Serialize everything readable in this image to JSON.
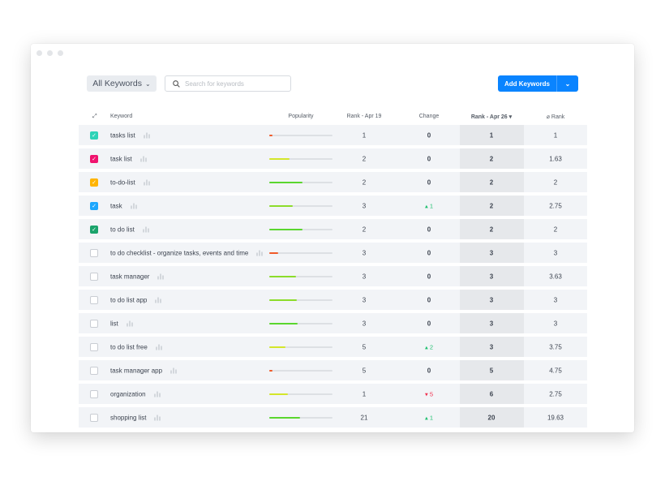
{
  "toolbar": {
    "filter_label": "All Keywords",
    "search_placeholder": "Search for keywords",
    "add_label": "Add Keywords"
  },
  "columns": {
    "keyword": "Keyword",
    "popularity": "Popularity",
    "rank_prev": "Rank - Apr 19",
    "change": "Change",
    "rank_curr": "Rank - Apr 26",
    "avg_rank": "⌀ Rank"
  },
  "rows": [
    {
      "keyword": "tasks list",
      "checked": true,
      "color": "#2ed3b7",
      "popularity": 5,
      "pop_color": "#f05a28",
      "rank_prev": "1",
      "change": "0",
      "dir": "",
      "rank_curr": "1",
      "avg": "1"
    },
    {
      "keyword": "task list",
      "checked": true,
      "color": "#f0136e",
      "popularity": 32,
      "pop_color": "#d4e62a",
      "rank_prev": "2",
      "change": "0",
      "dir": "",
      "rank_curr": "2",
      "avg": "1.63"
    },
    {
      "keyword": "to-do-list",
      "checked": true,
      "color": "#ffb400",
      "popularity": 52,
      "pop_color": "#5ad62e",
      "rank_prev": "2",
      "change": "0",
      "dir": "",
      "rank_curr": "2",
      "avg": "2"
    },
    {
      "keyword": "task",
      "checked": true,
      "color": "#1ea7fd",
      "popularity": 37,
      "pop_color": "#8cdc2a",
      "rank_prev": "3",
      "change": "1",
      "dir": "up",
      "rank_curr": "2",
      "avg": "2.75"
    },
    {
      "keyword": "to do list",
      "checked": true,
      "color": "#1aa36b",
      "popularity": 52,
      "pop_color": "#5ad62e",
      "rank_prev": "2",
      "change": "0",
      "dir": "",
      "rank_curr": "2",
      "avg": "2"
    },
    {
      "keyword": "to do checklist - organize tasks, events and time",
      "checked": false,
      "color": "",
      "popularity": 14,
      "pop_color": "#f05a28",
      "rank_prev": "3",
      "change": "0",
      "dir": "",
      "rank_curr": "3",
      "avg": "3"
    },
    {
      "keyword": "task manager",
      "checked": false,
      "color": "",
      "popularity": 42,
      "pop_color": "#8cdc2a",
      "rank_prev": "3",
      "change": "0",
      "dir": "",
      "rank_curr": "3",
      "avg": "3.63"
    },
    {
      "keyword": "to do list app",
      "checked": false,
      "color": "",
      "popularity": 43,
      "pop_color": "#8cdc2a",
      "rank_prev": "3",
      "change": "0",
      "dir": "",
      "rank_curr": "3",
      "avg": "3"
    },
    {
      "keyword": "list",
      "checked": false,
      "color": "",
      "popularity": 45,
      "pop_color": "#5ad62e",
      "rank_prev": "3",
      "change": "0",
      "dir": "",
      "rank_curr": "3",
      "avg": "3"
    },
    {
      "keyword": "to do list free",
      "checked": false,
      "color": "",
      "popularity": 25,
      "pop_color": "#d4e62a",
      "rank_prev": "5",
      "change": "2",
      "dir": "up",
      "rank_curr": "3",
      "avg": "3.75"
    },
    {
      "keyword": "task manager app",
      "checked": false,
      "color": "",
      "popularity": 5,
      "pop_color": "#f05a28",
      "rank_prev": "5",
      "change": "0",
      "dir": "",
      "rank_curr": "5",
      "avg": "4.75"
    },
    {
      "keyword": "organization",
      "checked": false,
      "color": "",
      "popularity": 30,
      "pop_color": "#d4e62a",
      "rank_prev": "1",
      "change": "5",
      "dir": "down",
      "rank_curr": "6",
      "avg": "2.75"
    },
    {
      "keyword": "shopping list",
      "checked": false,
      "color": "",
      "popularity": 49,
      "pop_color": "#5ad62e",
      "rank_prev": "21",
      "change": "1",
      "dir": "up",
      "rank_curr": "20",
      "avg": "19.63"
    }
  ]
}
